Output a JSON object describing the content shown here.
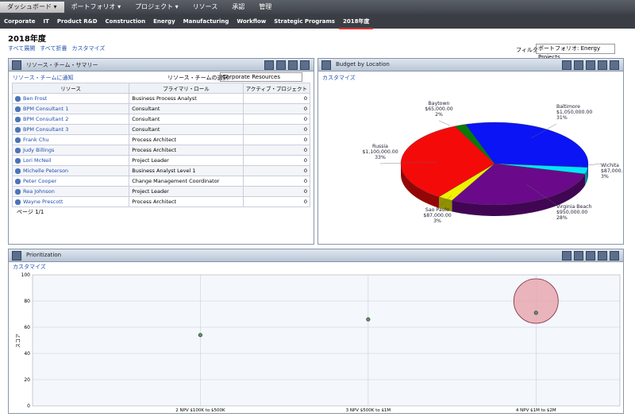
{
  "nav": {
    "tabs": [
      "ダッシュボード",
      "ポートフォリオ",
      "プロジェクト",
      "リソース",
      "承認",
      "管理"
    ],
    "subtabs": [
      "Corporate",
      "IT",
      "Product R&D",
      "Construction",
      "Energy",
      "Manufacturing",
      "Workflow",
      "Strategic Programs",
      "2018年度"
    ]
  },
  "page": {
    "title": "2018年度",
    "links": [
      "すべて展開",
      "すべて折畳",
      "カスタマイズ"
    ],
    "filter_label": "フィルタ",
    "filter_value": "ポートフォリオ: Energy Projects"
  },
  "resource_panel": {
    "title": "リソース・チーム・サマリー",
    "notify_link": "リソース・チームに通知",
    "select_label": "リソース・チームの選択:",
    "select_value": "Corporate Resources",
    "columns": [
      "リソース",
      "プライマリ・ロール",
      "アクティブ・プロジェクト"
    ],
    "rows": [
      [
        "Ben Frost",
        "Business Process Analyst",
        0
      ],
      [
        "BPM Consultant 1",
        "Consultant",
        0
      ],
      [
        "BPM Consultant 2",
        "Consultant",
        0
      ],
      [
        "BPM Consultant 3",
        "Consultant",
        0
      ],
      [
        "Frank Chu",
        "Process Architect",
        0
      ],
      [
        "Judy Billings",
        "Process Architect",
        0
      ],
      [
        "Lori McNeil",
        "Project Leader",
        0
      ],
      [
        "Michelle Peterson",
        "Business Analyst Level 1",
        0
      ],
      [
        "Peter Cooper",
        "Change Management Coordinator",
        0
      ],
      [
        "Rea Johnson",
        "Project Leader",
        0
      ],
      [
        "Wayne Prescott",
        "Process Architect",
        0
      ]
    ],
    "pager": "ページ 1/1"
  },
  "chart_data": [
    {
      "type": "pie",
      "title": "Budget by Location",
      "customize": "カスタマイズ",
      "categories": [
        "Baltimore",
        "Wichita",
        "Virginia Beach",
        "Sao Paulo",
        "Russia",
        "Baytown"
      ],
      "values": [
        1050000,
        87000,
        950000,
        87000,
        1100000,
        65000
      ],
      "value_labels": [
        "$1,050,000.00",
        "$87,000.00",
        "$950,000.00",
        "$87,000.00",
        "$1,100,000.00",
        "$65,000.00"
      ],
      "percent_labels": [
        "31%",
        "3%",
        "28%",
        "3%",
        "33%",
        "2%"
      ],
      "colors": [
        "#0a14f5",
        "#00e5ff",
        "#6a0a8a",
        "#f0f000",
        "#f50a0a",
        "#0a7a0a"
      ]
    },
    {
      "type": "bubble",
      "title": "Prioritization",
      "customize": "カスタマイズ",
      "ylabel": "スコア",
      "categories": [
        "2 NPV $100K to $500K",
        "3 NPV $500K to $1M",
        "4 NPV $1M to $2M"
      ],
      "ylim": [
        0,
        100
      ],
      "yticks": [
        0,
        20,
        40,
        60,
        80,
        100
      ],
      "grid": true,
      "series": [
        {
          "color": "#5a9a5a",
          "values": [
            54,
            66,
            71
          ]
        },
        {
          "color": "#e8a8b0",
          "values": [
            null,
            null,
            80
          ],
          "sizes": [
            null,
            null,
            28
          ]
        }
      ]
    }
  ]
}
